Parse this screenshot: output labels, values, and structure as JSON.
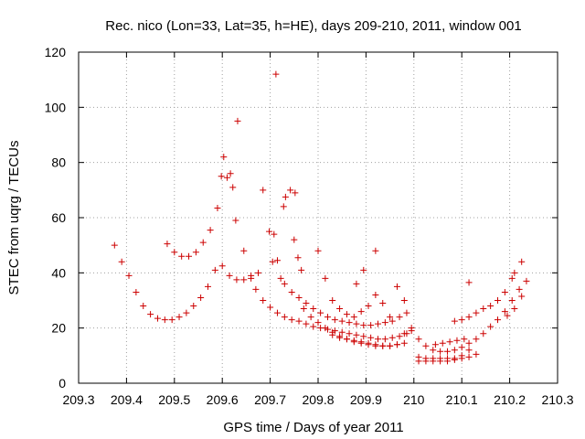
{
  "chart_data": {
    "type": "scatter",
    "title": "Rec. nico (Lon=33, Lat=35, h=HE), days 209-210, 2011, window 001",
    "xlabel": "GPS time / Days of year 2011",
    "ylabel": "STEC from uqrg / TECUs",
    "xlim": [
      209.3,
      210.3
    ],
    "ylim": [
      0,
      120
    ],
    "xticks": [
      "209.3",
      "209.4",
      "209.5",
      "209.6",
      "209.7",
      "209.8",
      "209.9",
      "210",
      "210.1",
      "210.2",
      "210.3"
    ],
    "yticks": [
      "0",
      "20",
      "40",
      "60",
      "80",
      "100",
      "120"
    ],
    "grid": true,
    "marker": "plus",
    "color": "#cc0000",
    "series": [
      {
        "points": [
          [
            209.375,
            50
          ],
          [
            209.39,
            44
          ],
          [
            209.405,
            39
          ],
          [
            209.42,
            33
          ],
          [
            209.435,
            28
          ],
          [
            209.45,
            25
          ],
          [
            209.465,
            23.5
          ],
          [
            209.48,
            23
          ],
          [
            209.495,
            23
          ],
          [
            209.51,
            24
          ],
          [
            209.525,
            25.5
          ],
          [
            209.54,
            28
          ],
          [
            209.555,
            31
          ],
          [
            209.57,
            35
          ],
          [
            209.585,
            41
          ],
          [
            209.6,
            42.5
          ],
          [
            209.615,
            39
          ],
          [
            209.63,
            37.5
          ],
          [
            209.645,
            37.5
          ],
          [
            209.66,
            38
          ],
          [
            209.675,
            40
          ],
          [
            209.485,
            50.5
          ],
          [
            209.5,
            47.5
          ],
          [
            209.515,
            46
          ],
          [
            209.53,
            46
          ],
          [
            209.545,
            47.5
          ],
          [
            209.56,
            51
          ],
          [
            209.575,
            55.5
          ],
          [
            209.59,
            63.5
          ],
          [
            209.598,
            75
          ],
          [
            209.603,
            82
          ],
          [
            209.61,
            74.5
          ],
          [
            209.617,
            76
          ],
          [
            209.622,
            71
          ],
          [
            209.628,
            59
          ],
          [
            209.632,
            95
          ],
          [
            209.645,
            48
          ],
          [
            209.66,
            39
          ],
          [
            209.67,
            34
          ],
          [
            209.685,
            30
          ],
          [
            209.7,
            27.5
          ],
          [
            209.715,
            25.5
          ],
          [
            209.73,
            24
          ],
          [
            209.745,
            23
          ],
          [
            209.76,
            22.5
          ],
          [
            209.775,
            21.5
          ],
          [
            209.79,
            20.5
          ],
          [
            209.805,
            20
          ],
          [
            209.82,
            19.5
          ],
          [
            209.835,
            19
          ],
          [
            209.85,
            18.5
          ],
          [
            209.865,
            18
          ],
          [
            209.88,
            17.5
          ],
          [
            209.895,
            17
          ],
          [
            209.91,
            16.5
          ],
          [
            209.925,
            16
          ],
          [
            209.94,
            16
          ],
          [
            209.955,
            16.5
          ],
          [
            209.97,
            17
          ],
          [
            209.985,
            18
          ],
          [
            209.685,
            70
          ],
          [
            209.698,
            55
          ],
          [
            209.705,
            44
          ],
          [
            209.708,
            54
          ],
          [
            209.712,
            112
          ],
          [
            209.715,
            44.5
          ],
          [
            209.722,
            38
          ],
          [
            209.728,
            64
          ],
          [
            209.732,
            67.5
          ],
          [
            209.742,
            70
          ],
          [
            209.75,
            52
          ],
          [
            209.752,
            69
          ],
          [
            209.758,
            45.5
          ],
          [
            209.765,
            41
          ],
          [
            209.73,
            36
          ],
          [
            209.745,
            33
          ],
          [
            209.76,
            31
          ],
          [
            209.775,
            29
          ],
          [
            209.79,
            27
          ],
          [
            209.805,
            25.5
          ],
          [
            209.82,
            24
          ],
          [
            209.835,
            23
          ],
          [
            209.85,
            22.5
          ],
          [
            209.865,
            22
          ],
          [
            209.88,
            21.5
          ],
          [
            209.895,
            21
          ],
          [
            209.91,
            21
          ],
          [
            209.925,
            21.5
          ],
          [
            209.94,
            22
          ],
          [
            209.955,
            22.5
          ],
          [
            209.97,
            24
          ],
          [
            209.985,
            25.5
          ],
          [
            209.77,
            27
          ],
          [
            209.785,
            24
          ],
          [
            209.8,
            22
          ],
          [
            209.815,
            20
          ],
          [
            209.83,
            18.5
          ],
          [
            209.845,
            17
          ],
          [
            209.86,
            16
          ],
          [
            209.875,
            15
          ],
          [
            209.89,
            14.5
          ],
          [
            209.905,
            14
          ],
          [
            209.92,
            13.5
          ],
          [
            209.935,
            13.5
          ],
          [
            209.95,
            13.5
          ],
          [
            209.965,
            14
          ],
          [
            209.98,
            14.5
          ],
          [
            209.8,
            48
          ],
          [
            209.815,
            38
          ],
          [
            209.83,
            30
          ],
          [
            209.845,
            27
          ],
          [
            209.86,
            25
          ],
          [
            209.875,
            24
          ],
          [
            209.89,
            26
          ],
          [
            209.905,
            28
          ],
          [
            209.92,
            32
          ],
          [
            209.935,
            29
          ],
          [
            209.95,
            24
          ],
          [
            209.965,
            35
          ],
          [
            209.98,
            30
          ],
          [
            209.995,
            20
          ],
          [
            209.83,
            17.5
          ],
          [
            209.845,
            16.5
          ],
          [
            209.86,
            16
          ],
          [
            209.875,
            15.5
          ],
          [
            209.89,
            15
          ],
          [
            209.905,
            14.5
          ],
          [
            209.92,
            14
          ],
          [
            209.935,
            13.5
          ],
          [
            209.95,
            13.5
          ],
          [
            209.965,
            14
          ],
          [
            209.98,
            18
          ],
          [
            209.995,
            19
          ],
          [
            209.88,
            36
          ],
          [
            209.895,
            41
          ],
          [
            209.92,
            48
          ],
          [
            210.01,
            16
          ],
          [
            210.025,
            13.5
          ],
          [
            210.04,
            12
          ],
          [
            210.055,
            11.5
          ],
          [
            210.07,
            11.5
          ],
          [
            210.085,
            12
          ],
          [
            210.1,
            13
          ],
          [
            210.115,
            14.5
          ],
          [
            210.13,
            16
          ],
          [
            210.145,
            18
          ],
          [
            210.16,
            20.5
          ],
          [
            210.175,
            23
          ],
          [
            210.19,
            26
          ],
          [
            210.205,
            30
          ],
          [
            210.22,
            34
          ],
          [
            210.235,
            37
          ],
          [
            210.01,
            9.5
          ],
          [
            210.025,
            9
          ],
          [
            210.04,
            9
          ],
          [
            210.055,
            9
          ],
          [
            210.07,
            9
          ],
          [
            210.085,
            9
          ],
          [
            210.1,
            9
          ],
          [
            210.115,
            9.5
          ],
          [
            210.13,
            10.5
          ],
          [
            210.01,
            8
          ],
          [
            210.025,
            8
          ],
          [
            210.04,
            8
          ],
          [
            210.055,
            8
          ],
          [
            210.07,
            8
          ],
          [
            210.085,
            8.5
          ],
          [
            210.1,
            10
          ],
          [
            210.115,
            12
          ],
          [
            210.045,
            14
          ],
          [
            210.06,
            14.5
          ],
          [
            210.075,
            15
          ],
          [
            210.09,
            15.5
          ],
          [
            210.105,
            16
          ],
          [
            210.085,
            22.5
          ],
          [
            210.1,
            23
          ],
          [
            210.115,
            24
          ],
          [
            210.13,
            25.5
          ],
          [
            210.145,
            27
          ],
          [
            210.16,
            28
          ],
          [
            210.175,
            30
          ],
          [
            210.19,
            33
          ],
          [
            210.205,
            38
          ],
          [
            210.21,
            40
          ],
          [
            210.225,
            44
          ],
          [
            210.115,
            36.5
          ],
          [
            210.225,
            31.5
          ],
          [
            210.21,
            27
          ],
          [
            210.195,
            24.5
          ]
        ]
      }
    ]
  }
}
